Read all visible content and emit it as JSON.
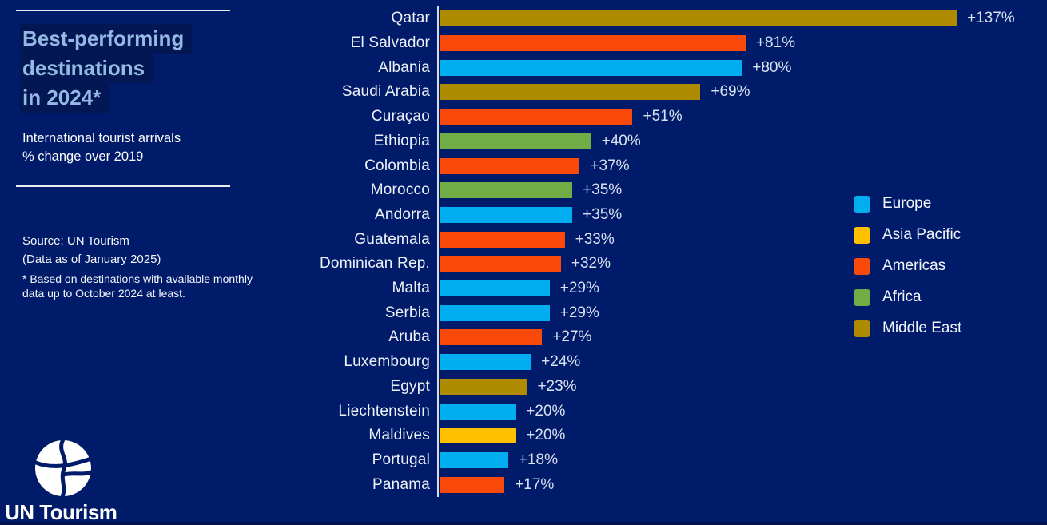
{
  "colors": {
    "background": "#001B69",
    "axis": "#D5DBE7",
    "title_text": "#96B9E4",
    "title_highlight": "#021754",
    "europe": "#00AEEF",
    "asia_pacific": "#FFC000",
    "americas": "#FA4A0B",
    "africa": "#70AD47",
    "middle_east": "#AE8B00"
  },
  "panel": {
    "title_line1": "Best-performing",
    "title_line2": "destinations",
    "title_line3": "in 2024*",
    "subtitle_line1": "International tourist arrivals",
    "subtitle_line2": "% change over 2019",
    "source_line1": "Source: UN Tourism",
    "source_line2": "(Data as of January 2025)",
    "source_note": "* Based on destinations with available monthly data up to October 2024 at least.",
    "logo_text": "UN Tourism"
  },
  "chart_data": {
    "type": "bar",
    "orientation": "horizontal",
    "title": "Best-performing destinations in 2024*",
    "subtitle": "International tourist arrivals % change over 2019",
    "unit": "% change vs 2019",
    "xlim": [
      0,
      145
    ],
    "grid": false,
    "legend_position": "right",
    "categories": [
      "Qatar",
      "El Salvador",
      "Albania",
      "Saudi Arabia",
      "Curaçao",
      "Ethiopia",
      "Colombia",
      "Morocco",
      "Andorra",
      "Guatemala",
      "Dominican Rep.",
      "Malta",
      "Serbia",
      "Aruba",
      "Luxembourg",
      "Egypt",
      "Liechtenstein",
      "Maldives",
      "Portugal",
      "Panama"
    ],
    "values": [
      137,
      81,
      80,
      69,
      51,
      40,
      37,
      35,
      35,
      33,
      32,
      29,
      29,
      27,
      24,
      23,
      20,
      20,
      18,
      17
    ],
    "value_labels": [
      "+137%",
      "+81%",
      "+80%",
      "+69%",
      "+51%",
      "+40%",
      "+37%",
      "+35%",
      "+35%",
      "+33%",
      "+32%",
      "+29%",
      "+29%",
      "+27%",
      "+24%",
      "+23%",
      "+20%",
      "+20%",
      "+18%",
      "+17%"
    ],
    "regions": [
      "Middle East",
      "Americas",
      "Europe",
      "Middle East",
      "Americas",
      "Africa",
      "Americas",
      "Africa",
      "Europe",
      "Americas",
      "Americas",
      "Europe",
      "Europe",
      "Americas",
      "Europe",
      "Middle East",
      "Europe",
      "Asia Pacific",
      "Europe",
      "Americas"
    ],
    "region_colors": {
      "Europe": "#00AEEF",
      "Asia Pacific": "#FFC000",
      "Americas": "#FA4A0B",
      "Africa": "#70AD47",
      "Middle East": "#AE8B00"
    },
    "legend": [
      "Europe",
      "Asia Pacific",
      "Americas",
      "Africa",
      "Middle East"
    ]
  }
}
